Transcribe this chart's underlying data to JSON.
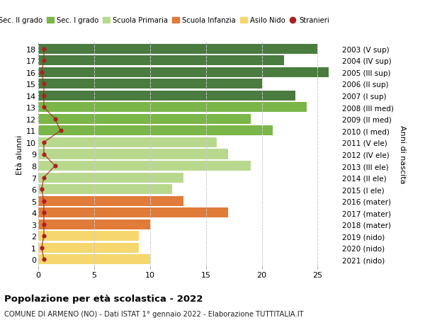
{
  "ages": [
    18,
    17,
    16,
    15,
    14,
    13,
    12,
    11,
    10,
    9,
    8,
    7,
    6,
    5,
    4,
    3,
    2,
    1,
    0
  ],
  "right_labels": [
    "2003 (V sup)",
    "2004 (IV sup)",
    "2005 (III sup)",
    "2006 (II sup)",
    "2007 (I sup)",
    "2008 (III med)",
    "2009 (II med)",
    "2010 (I med)",
    "2011 (V ele)",
    "2012 (IV ele)",
    "2013 (III ele)",
    "2014 (II ele)",
    "2015 (I ele)",
    "2016 (mater)",
    "2017 (mater)",
    "2018 (mater)",
    "2019 (nido)",
    "2020 (nido)",
    "2021 (nido)"
  ],
  "bar_values": [
    25,
    22,
    26,
    20,
    23,
    24,
    19,
    21,
    16,
    17,
    19,
    13,
    12,
    13,
    17,
    10,
    9,
    9,
    10
  ],
  "bar_colors": [
    "#4a7c3f",
    "#4a7c3f",
    "#4a7c3f",
    "#4a7c3f",
    "#4a7c3f",
    "#7ab648",
    "#7ab648",
    "#7ab648",
    "#b8d98d",
    "#b8d98d",
    "#b8d98d",
    "#b8d98d",
    "#b8d98d",
    "#e07b39",
    "#e07b39",
    "#e07b39",
    "#f5d76e",
    "#f5d76e",
    "#f5d76e"
  ],
  "stranieri_x": [
    0.5,
    0.5,
    0.3,
    0.5,
    0.5,
    0.5,
    1.5,
    2.0,
    0.5,
    0.5,
    1.5,
    0.5,
    0.3,
    0.5,
    0.5,
    0.5,
    0.5,
    0.3,
    0.5
  ],
  "stranieri_color": "#aa2222",
  "legend_items": [
    {
      "label": "Sec. II grado",
      "color": "#4a7c3f"
    },
    {
      "label": "Sec. I grado",
      "color": "#7ab648"
    },
    {
      "label": "Scuola Primaria",
      "color": "#b8d98d"
    },
    {
      "label": "Scuola Infanzia",
      "color": "#e07b39"
    },
    {
      "label": "Asilo Nido",
      "color": "#f5d76e"
    },
    {
      "label": "Stranieri",
      "color": "#aa2222"
    }
  ],
  "ylabel_left": "Età alunni",
  "ylabel_right": "Anni di nascita",
  "xlim": [
    0,
    27
  ],
  "xticks": [
    0,
    5,
    10,
    15,
    20,
    25
  ],
  "title": "Popolazione per età scolastica - 2022",
  "subtitle": "COMUNE DI ARMENO (NO) - Dati ISTAT 1° gennaio 2022 - Elaborazione TUTTITALIA.IT",
  "background_color": "#ffffff",
  "grid_color": "#cccccc",
  "bar_height": 0.85
}
